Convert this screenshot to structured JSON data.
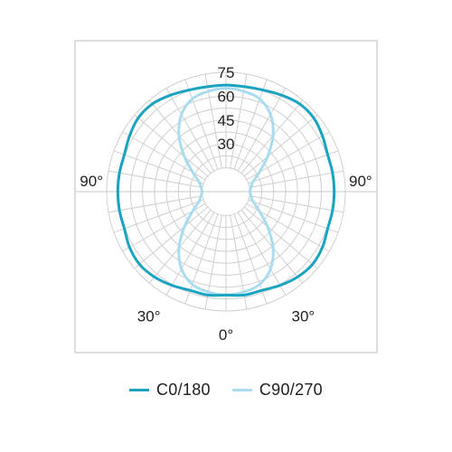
{
  "chart_data": {
    "type": "polar",
    "radial_ticks": [
      {
        "value": 30,
        "label": "30"
      },
      {
        "value": 45,
        "label": "45"
      },
      {
        "value": 60,
        "label": "60"
      },
      {
        "value": 75,
        "label": "75"
      }
    ],
    "r_max": 75,
    "grid": true,
    "spoke_step_deg": 10,
    "angle_labels": [
      {
        "angle": 0,
        "side": "bottom",
        "label": "0°"
      },
      {
        "angle": 30,
        "side": "left",
        "label": "30°"
      },
      {
        "angle": 30,
        "side": "right",
        "label": "30°"
      },
      {
        "angle": 90,
        "side": "left",
        "label": "90°"
      },
      {
        "angle": 90,
        "side": "right",
        "label": "90°"
      }
    ],
    "series": [
      {
        "name": "C0/180",
        "color": "#19a3c1",
        "angles": [
          0,
          10,
          20,
          30,
          40,
          50,
          60,
          70,
          80,
          90,
          100,
          110,
          120,
          130,
          140,
          150,
          160,
          170,
          180
        ],
        "values": [
          65,
          66,
          66,
          68,
          70,
          71,
          70,
          68,
          68,
          68,
          68,
          68,
          70,
          72,
          72,
          70,
          68,
          67,
          67
        ]
      },
      {
        "name": "C90/270",
        "color": "#a9dcef",
        "angles": [
          0,
          10,
          20,
          30,
          40,
          50,
          60,
          70,
          80,
          90,
          100,
          110,
          120,
          130,
          140,
          150,
          160,
          170,
          180
        ],
        "values": [
          65,
          64,
          62,
          56,
          46,
          34,
          24,
          18,
          16,
          15,
          16,
          18,
          24,
          34,
          46,
          56,
          62,
          64,
          65
        ]
      }
    ]
  },
  "legend": {
    "items": [
      {
        "label": "C0/180",
        "color": "#19a3c1"
      },
      {
        "label": "C90/270",
        "color": "#a9dcef"
      }
    ]
  }
}
